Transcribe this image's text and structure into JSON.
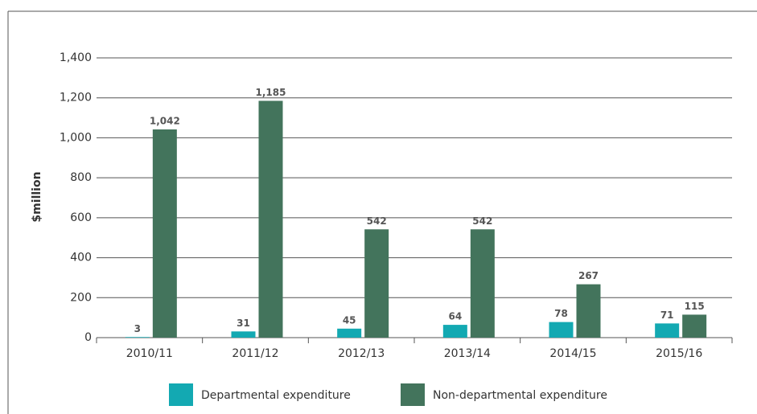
{
  "chart_data": {
    "type": "bar",
    "y_label": "$million",
    "categories": [
      "2010/11",
      "2011/12",
      "2012/13",
      "2013/14",
      "2014/15",
      "2015/16"
    ],
    "series": [
      {
        "name": "Departmental expenditure",
        "color": "#13a9b2",
        "values": [
          3,
          31,
          45,
          64,
          78,
          71
        ]
      },
      {
        "name": "Non-departmental expenditure",
        "color": "#43745c",
        "values": [
          1042,
          1185,
          542,
          542,
          267,
          115
        ],
        "value_labels": [
          "1,042",
          "1,185",
          "542",
          "542",
          "267",
          "115"
        ]
      }
    ],
    "ylim": [
      0,
      1400
    ],
    "yticks": [
      0,
      200,
      400,
      600,
      800,
      {
        "value": 1000,
        "label": "1,000"
      },
      {
        "value": 1200,
        "label": "1,200"
      },
      {
        "value": 1400,
        "label": "1,400"
      }
    ],
    "grid": true
  }
}
